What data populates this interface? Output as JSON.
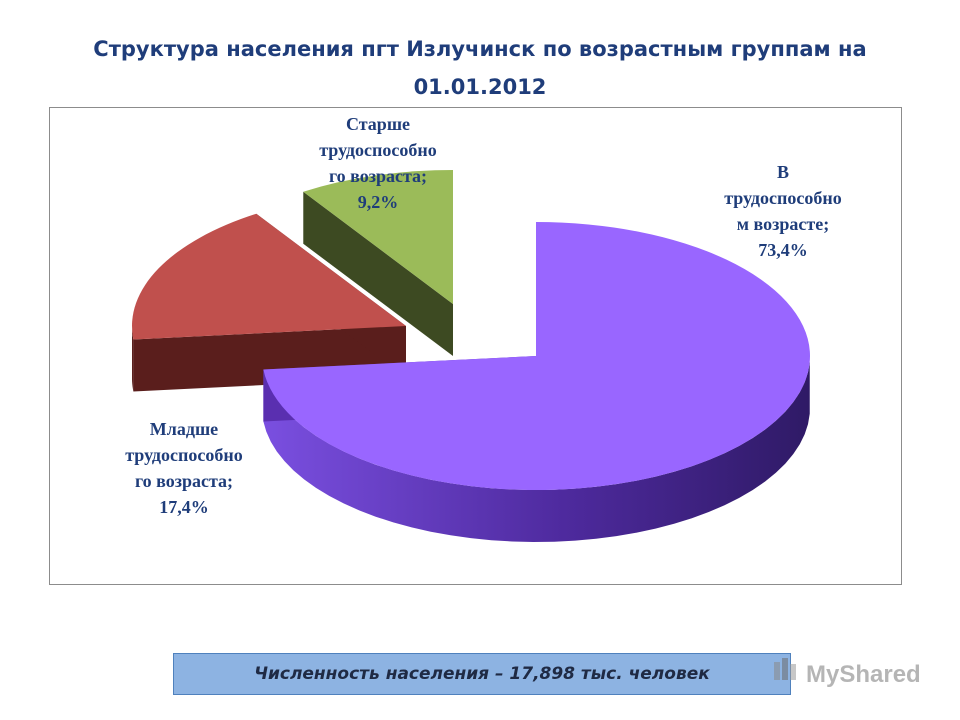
{
  "title_line1": "Структура населения пгт Излучинск по возрастным группам на",
  "title_line2": "01.01.2012",
  "footer_text": "Численность населения – 17,898 тыс. человек",
  "watermark_text": "MyShared",
  "chart_data": {
    "type": "pie",
    "title": "Структура населения пгт Излучинск по возрастным группам на 01.01.2012",
    "three_d": true,
    "exploded": true,
    "slices": [
      {
        "name": "В трудоспособном возрасте",
        "value": 73.4,
        "label_lines": [
          "В",
          "трудоспособно",
          "м возрасте;",
          "73,4%"
        ],
        "color": "#9966ff",
        "side_color": "#5a2fb0"
      },
      {
        "name": "Младше трудоспособного возраста",
        "value": 17.4,
        "label_lines": [
          "Младше",
          "трудоспособно",
          "го возраста;",
          "17,4%"
        ],
        "color": "#c0504d",
        "side_color": "#5a1e1c"
      },
      {
        "name": "Старше трудоспособного возраста",
        "value": 9.2,
        "label_lines": [
          "Старше",
          "трудоспособно",
          "го возраста;",
          "9,2%"
        ],
        "color": "#9bbb59",
        "side_color": "#3d4a22"
      }
    ]
  }
}
